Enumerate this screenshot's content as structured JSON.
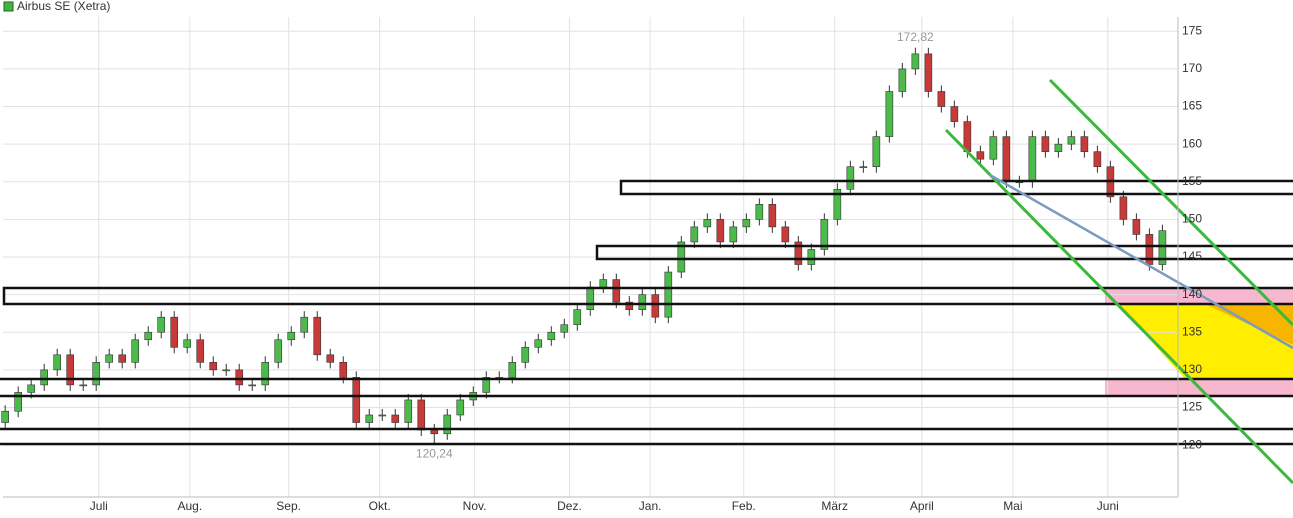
{
  "chart_data": {
    "type": "candlestick",
    "series": [
      {
        "name": "Airbus SE (Xetra)",
        "color": "#3cb83c",
        "open": [
          123,
          124.5,
          127,
          128,
          130,
          132,
          128,
          128,
          131,
          132,
          131,
          134,
          135,
          137,
          133,
          134,
          131,
          130,
          130,
          128,
          128,
          131,
          134,
          135,
          137,
          132,
          131,
          129,
          123,
          124,
          124,
          123,
          126,
          122,
          121.5,
          124,
          126,
          127,
          129,
          129,
          131,
          133,
          134,
          135,
          136,
          138,
          141,
          142,
          139,
          138,
          140,
          137,
          143,
          147,
          149,
          150,
          147,
          149,
          150,
          152,
          149,
          147,
          144,
          146,
          150,
          154,
          157,
          157,
          161,
          167,
          170,
          172,
          167,
          165,
          163,
          159,
          158,
          161,
          155,
          155,
          161,
          159,
          160,
          161,
          159,
          157,
          153,
          150,
          148,
          144
        ],
        "high": [
          125.3,
          127.8,
          128.8,
          130.8,
          132.8,
          132.8,
          128.8,
          131.8,
          132.8,
          132.8,
          134.8,
          135.8,
          137.8,
          137.8,
          134.8,
          134.8,
          131.8,
          130.8,
          130.8,
          128.8,
          131.8,
          134.8,
          135.8,
          137.8,
          137.8,
          132.8,
          131.8,
          129.8,
          124.8,
          124.8,
          124.8,
          126.8,
          126.8,
          122.8,
          124.8,
          126.8,
          127.8,
          129.8,
          129.8,
          131.8,
          133.8,
          134.8,
          135.8,
          136.8,
          138.8,
          141.8,
          142.8,
          142.8,
          139.8,
          140.8,
          140.8,
          143.8,
          147.8,
          149.8,
          150.8,
          150.8,
          149.8,
          150.8,
          152.8,
          152.8,
          149.8,
          147.8,
          146.8,
          150.8,
          154.8,
          157.8,
          157.8,
          161.8,
          167.8,
          170.8,
          172.82,
          172.8,
          167.8,
          165.8,
          163.8,
          159.8,
          161.8,
          161.8,
          155.8,
          161.8,
          161.8,
          160.8,
          161.8,
          161.8,
          159.8,
          157.8,
          153.8,
          150.8,
          148.8,
          149.3
        ],
        "low": [
          122.2,
          123.7,
          126.2,
          127.2,
          129.2,
          127.2,
          127.2,
          127.2,
          130.2,
          130.2,
          130.2,
          133.2,
          134.2,
          132.2,
          132.2,
          130.2,
          129.2,
          129.2,
          127.2,
          127.2,
          127.2,
          130.2,
          133.2,
          134.2,
          131.2,
          130.2,
          128.2,
          122.2,
          122.2,
          123.2,
          122.2,
          122.2,
          121.2,
          120.24,
          120.7,
          123.2,
          125.2,
          126.2,
          128.2,
          128.2,
          130.2,
          132.2,
          133.2,
          134.2,
          135.2,
          137.2,
          140.2,
          138.2,
          137.2,
          137.2,
          136.2,
          136.2,
          142.2,
          146.2,
          148.2,
          146.2,
          146.2,
          148.2,
          149.2,
          148.2,
          146.2,
          143.2,
          143.2,
          145.2,
          149.2,
          153.2,
          156.2,
          156.2,
          160.2,
          166.2,
          169.2,
          166.2,
          164.2,
          162.2,
          158.2,
          157.2,
          157.2,
          154.2,
          154.2,
          154.2,
          158.2,
          158.2,
          159.2,
          158.2,
          156.2,
          152.2,
          149.2,
          147.2,
          143.2,
          143.2
        ],
        "close": [
          124.5,
          127,
          128,
          130,
          132,
          128,
          128,
          131,
          132,
          131,
          134,
          135,
          137,
          133,
          134,
          131,
          130,
          130,
          128,
          128,
          131,
          134,
          135,
          137,
          132,
          131,
          129,
          123,
          124,
          124,
          123,
          126,
          122,
          121.5,
          124,
          126,
          127,
          129,
          129,
          131,
          133,
          134,
          135,
          136,
          138,
          141,
          142,
          139,
          138,
          140,
          137,
          143,
          147,
          149,
          150,
          147,
          149,
          150,
          152,
          149,
          147,
          144,
          146,
          150,
          154,
          157,
          157,
          161,
          167,
          170,
          172,
          167,
          165,
          163,
          159,
          158,
          161,
          155,
          155,
          161,
          159,
          160,
          161,
          159,
          157,
          153,
          150,
          148,
          144,
          148.5
        ]
      }
    ],
    "x": [
      0,
      1,
      2,
      3,
      4,
      5,
      6,
      7,
      8,
      9,
      10,
      11,
      12,
      13,
      14,
      15,
      16,
      17,
      18,
      19,
      20,
      21,
      22,
      23,
      24,
      25,
      26,
      27,
      28,
      29,
      30,
      31,
      32,
      33,
      34,
      35,
      36,
      37,
      38,
      39,
      40,
      41,
      42,
      43,
      44,
      45,
      46,
      47,
      48,
      49,
      50,
      51,
      52,
      53,
      54,
      55,
      56,
      57,
      58,
      59,
      60,
      61,
      62,
      63,
      64,
      65,
      66,
      67,
      68,
      69,
      70,
      71,
      72,
      73,
      74,
      75,
      76,
      77,
      78,
      79,
      80,
      81,
      82,
      83,
      84,
      85,
      86,
      87,
      88,
      89
    ],
    "up_color": "#4cbb4c",
    "down_color": "#c83a3a",
    "xlim": [
      -0.4,
      90.2
    ],
    "xticks": [
      {
        "value": 7.2,
        "label": "Juli"
      },
      {
        "value": 14.2,
        "label": "Aug."
      },
      {
        "value": 21.8,
        "label": "Sep."
      },
      {
        "value": 28.8,
        "label": "Okt."
      },
      {
        "value": 36.1,
        "label": "Nov."
      },
      {
        "value": 43.4,
        "label": "Dez."
      },
      {
        "value": 49.6,
        "label": "Jan."
      },
      {
        "value": 56.8,
        "label": "Feb."
      },
      {
        "value": 63.8,
        "label": "März"
      },
      {
        "value": 70.5,
        "label": "April"
      },
      {
        "value": 77.5,
        "label": "Mai"
      },
      {
        "value": 84.8,
        "label": "Juni"
      }
    ],
    "ylim": [
      113.1,
      176.9
    ],
    "yticks": [
      120,
      125,
      130,
      135,
      140,
      145,
      150,
      155,
      160,
      165,
      170,
      175
    ],
    "grid": true,
    "annotations": [
      {
        "text": "172,82",
        "x": 70,
        "y": 172.82,
        "position": "above"
      },
      {
        "text": "120,24",
        "x": 33,
        "y": 120.24,
        "position": "below"
      }
    ]
  }
}
